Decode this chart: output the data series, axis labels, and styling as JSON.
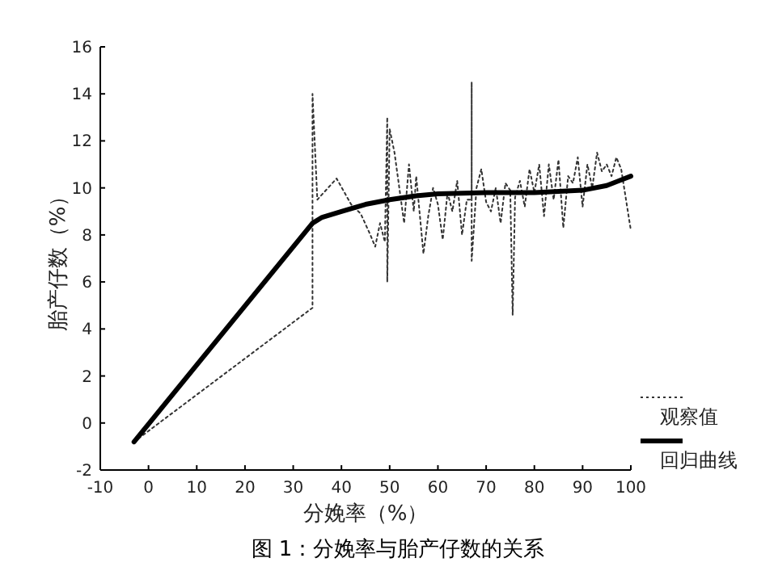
{
  "chart_data": {
    "type": "line",
    "title": "图 1：分娩率与胎产仔数的关系",
    "xlabel": "分娩率（%）",
    "ylabel": "胎产仔数（%）",
    "xlim": [
      -10,
      100
    ],
    "ylim": [
      -2,
      16
    ],
    "xticks": [
      -10,
      0,
      10,
      20,
      30,
      40,
      50,
      60,
      70,
      80,
      90,
      100
    ],
    "yticks": [
      -2,
      0,
      2,
      4,
      6,
      8,
      10,
      12,
      14,
      16
    ],
    "grid": false,
    "legend": "bottom right",
    "series": [
      {
        "name": "观察值",
        "color": "#333333",
        "line_style": "dotted",
        "x": [
          -3,
          34,
          34,
          35,
          39,
          42,
          44,
          46,
          47,
          48,
          49,
          49.5,
          49.5,
          50,
          51,
          52,
          53,
          54,
          55,
          55.5,
          57,
          58,
          59,
          60,
          61,
          62,
          63,
          64,
          65,
          66,
          67,
          67,
          67,
          68,
          69,
          70,
          71,
          72,
          73,
          74,
          75,
          75.5,
          76,
          77,
          78,
          79,
          80,
          81,
          82,
          83,
          84,
          85,
          86,
          87,
          88,
          89,
          90,
          91,
          92,
          93,
          94,
          95,
          96,
          97,
          98,
          100
        ],
        "values": [
          -0.8,
          4.9,
          14,
          9.5,
          10.4,
          9.3,
          8.9,
          8.0,
          7.5,
          8.5,
          7.7,
          13.0,
          6.0,
          12.5,
          11.5,
          10.0,
          8.5,
          11.0,
          9.0,
          10.5,
          7.2,
          8.8,
          10.0,
          9.3,
          7.8,
          9.8,
          9.0,
          10.3,
          8.0,
          9.5,
          9.5,
          14.5,
          6.9,
          10.0,
          10.8,
          9.4,
          9.0,
          10.0,
          8.5,
          10.2,
          9.9,
          4.6,
          9.6,
          10.3,
          9.2,
          10.8,
          9.8,
          11.0,
          8.8,
          11.0,
          9.5,
          11.2,
          8.3,
          10.5,
          10.2,
          11.3,
          9.2,
          11.0,
          10.0,
          11.5,
          10.7,
          11.0,
          10.5,
          11.3,
          10.8,
          8.2
        ]
      },
      {
        "name": "回归曲线",
        "color": "#000000",
        "line_style": "solid",
        "x": [
          -3,
          34,
          36,
          40,
          45,
          50,
          55,
          60,
          70,
          80,
          90,
          95,
          100
        ],
        "values": [
          -0.8,
          8.5,
          8.75,
          9.0,
          9.3,
          9.5,
          9.65,
          9.75,
          9.8,
          9.8,
          9.9,
          10.1,
          10.5
        ]
      }
    ]
  }
}
